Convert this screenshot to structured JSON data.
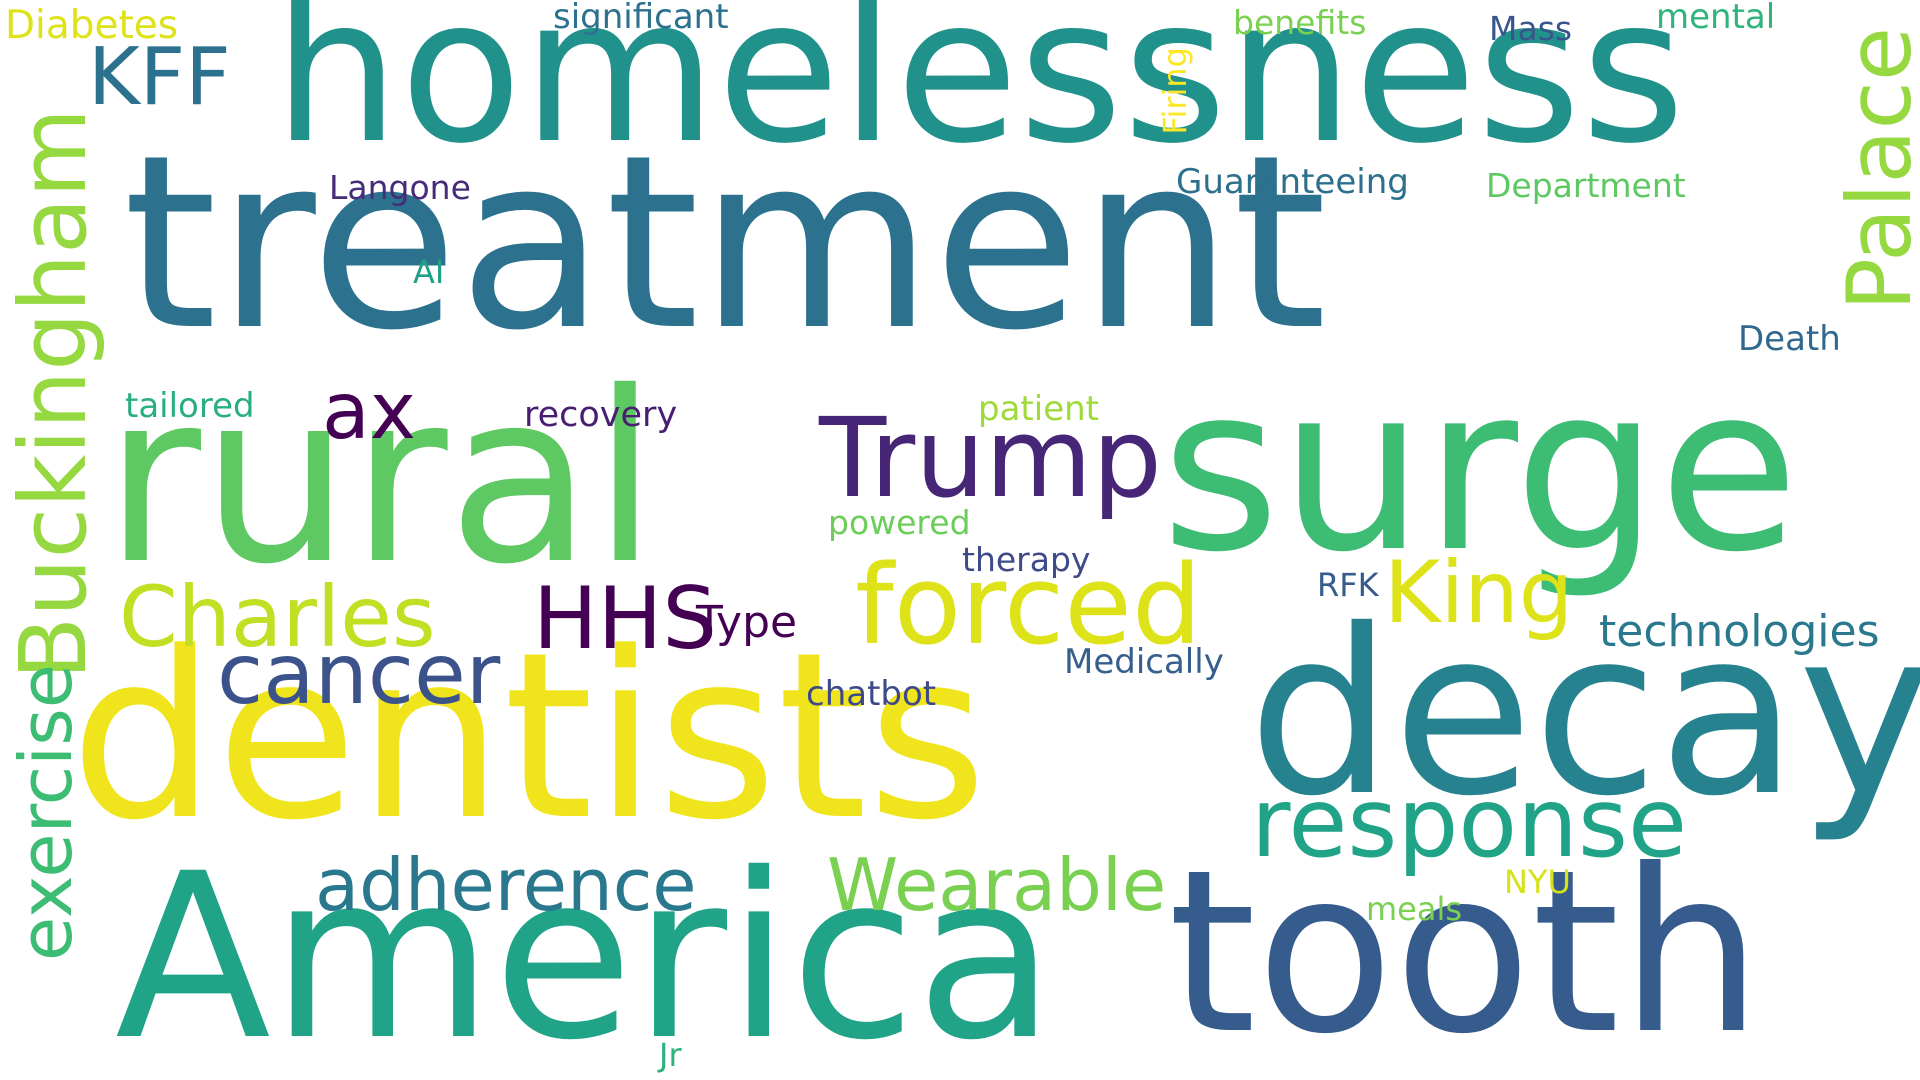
{
  "words": [
    {
      "id": "treatment",
      "text": "treatment",
      "color": "#2c728e"
    },
    {
      "id": "homelessness",
      "text": "homelessness",
      "color": "#21918c"
    },
    {
      "id": "surge",
      "text": "surge",
      "color": "#3dbc74"
    },
    {
      "id": "rural",
      "text": "rural",
      "color": "#5ec962"
    },
    {
      "id": "dentists",
      "text": "dentists",
      "color": "#f0e51c"
    },
    {
      "id": "decay",
      "text": "decay",
      "color": "#26828e"
    },
    {
      "id": "america",
      "text": "America",
      "color": "#20a386"
    },
    {
      "id": "tooth",
      "text": "tooth",
      "color": "#365c8d"
    },
    {
      "id": "response",
      "text": "response",
      "color": "#20a386"
    },
    {
      "id": "buckingham",
      "text": "Buckingham",
      "color": "#95d840"
    },
    {
      "id": "palace",
      "text": "Palace",
      "color": "#95d840"
    },
    {
      "id": "exercise",
      "text": "exercise",
      "color": "#3dbc74"
    },
    {
      "id": "trump",
      "text": "Trump",
      "color": "#482677"
    },
    {
      "id": "forced",
      "text": "forced",
      "color": "#dde318"
    },
    {
      "id": "charles",
      "text": "Charles",
      "color": "#c2df23"
    },
    {
      "id": "king",
      "text": "King",
      "color": "#dde318"
    },
    {
      "id": "hhs",
      "text": "HHS",
      "color": "#440154"
    },
    {
      "id": "cancer",
      "text": "cancer",
      "color": "#3b528b"
    },
    {
      "id": "adherence",
      "text": "adherence",
      "color": "#2a788e"
    },
    {
      "id": "wearable",
      "text": "Wearable",
      "color": "#7ad151"
    },
    {
      "id": "kff",
      "text": "KFF",
      "color": "#2c728e"
    },
    {
      "id": "ax",
      "text": "ax",
      "color": "#440154"
    },
    {
      "id": "technologies",
      "text": "technologies",
      "color": "#2a788e"
    },
    {
      "id": "diabetes",
      "text": "Diabetes",
      "color": "#dde318"
    },
    {
      "id": "significant",
      "text": "significant",
      "color": "#2c728e"
    },
    {
      "id": "benefits",
      "text": "benefits",
      "color": "#7ad151"
    },
    {
      "id": "mass",
      "text": "Mass",
      "color": "#39568c"
    },
    {
      "id": "mental",
      "text": "mental",
      "color": "#2fb47c"
    },
    {
      "id": "firing",
      "text": "Firing",
      "color": "#fde725"
    },
    {
      "id": "langone",
      "text": "Langone",
      "color": "#472c7a"
    },
    {
      "id": "guaranteeing",
      "text": "Guaranteeing",
      "color": "#2d708e"
    },
    {
      "id": "department",
      "text": "Department",
      "color": "#5ec962"
    },
    {
      "id": "ai",
      "text": "AI",
      "color": "#1fa187"
    },
    {
      "id": "death",
      "text": "Death",
      "color": "#31688e"
    },
    {
      "id": "tailored",
      "text": "tailored",
      "color": "#29af7f"
    },
    {
      "id": "recovery",
      "text": "recovery",
      "color": "#481f70"
    },
    {
      "id": "patient",
      "text": "patient",
      "color": "#9fda3a"
    },
    {
      "id": "powered",
      "text": "powered",
      "color": "#6ccd5a"
    },
    {
      "id": "therapy",
      "text": "therapy",
      "color": "#3e4a89"
    },
    {
      "id": "rfk",
      "text": "RFK",
      "color": "#365c8d"
    },
    {
      "id": "type",
      "text": "Type",
      "color": "#440154"
    },
    {
      "id": "medically",
      "text": "Medically",
      "color": "#355f8d"
    },
    {
      "id": "chatbot",
      "text": "chatbot",
      "color": "#3e4989"
    },
    {
      "id": "nyu",
      "text": "NYU",
      "color": "#d8e219"
    },
    {
      "id": "meals",
      "text": "meals",
      "color": "#7ad151"
    },
    {
      "id": "jr",
      "text": "Jr",
      "color": "#2db27d"
    }
  ]
}
